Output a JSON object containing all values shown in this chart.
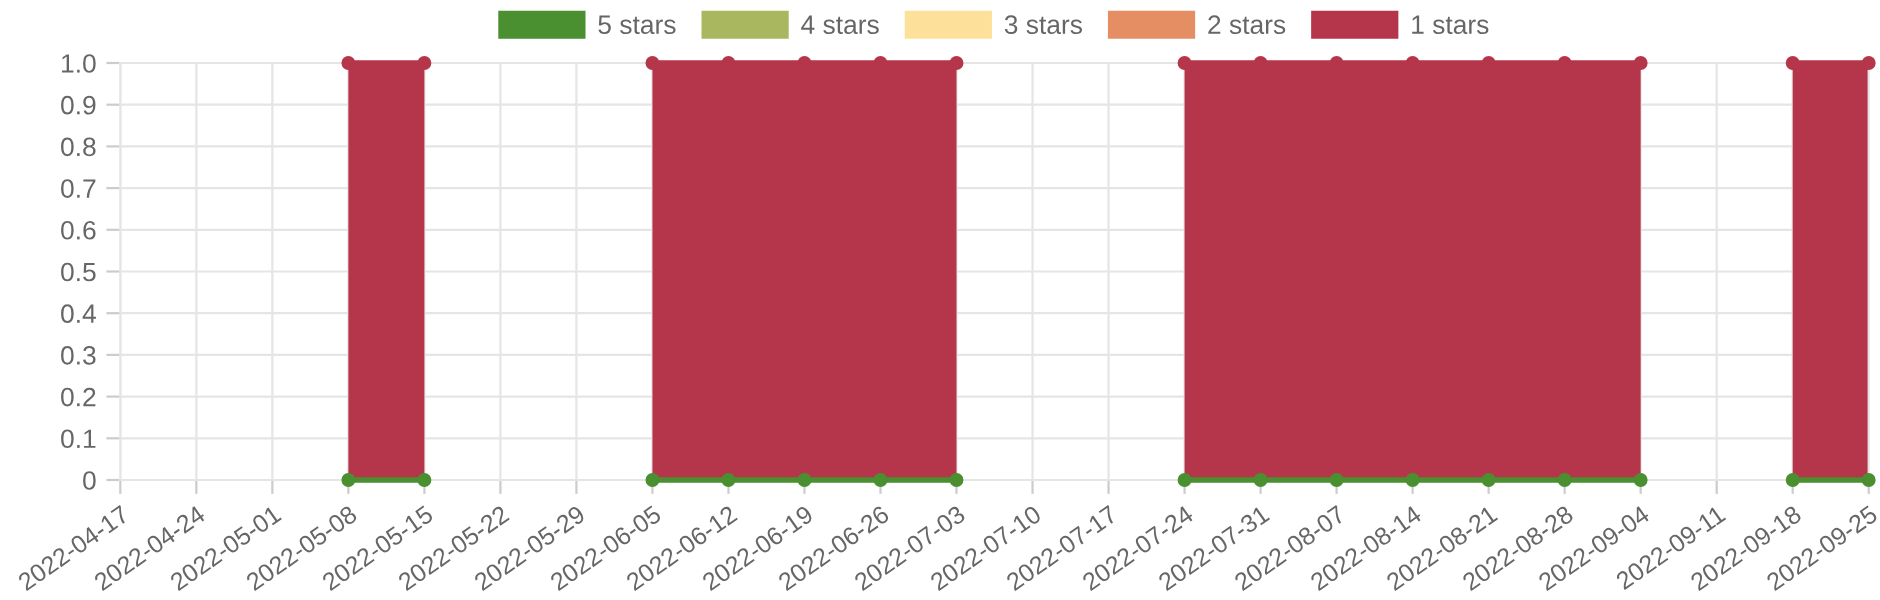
{
  "chart_data": {
    "type": "area",
    "categories": [
      "2022-04-17",
      "2022-04-24",
      "2022-05-01",
      "2022-05-08",
      "2022-05-15",
      "2022-05-22",
      "2022-05-29",
      "2022-06-05",
      "2022-06-12",
      "2022-06-19",
      "2022-06-26",
      "2022-07-03",
      "2022-07-10",
      "2022-07-17",
      "2022-07-24",
      "2022-07-31",
      "2022-08-07",
      "2022-08-14",
      "2022-08-21",
      "2022-08-28",
      "2022-09-04",
      "2022-09-11",
      "2022-09-18",
      "2022-09-25"
    ],
    "series": [
      {
        "name": "5 stars",
        "color": "#4a8f30",
        "type": "line",
        "values": [
          null,
          null,
          null,
          0,
          0,
          null,
          null,
          0,
          0,
          0,
          0,
          0,
          null,
          null,
          0,
          0,
          0,
          0,
          0,
          0,
          0,
          null,
          0,
          0
        ]
      },
      {
        "name": "4 stars",
        "color": "#a9b85f",
        "values": [
          null,
          null,
          null,
          null,
          null,
          null,
          null,
          null,
          null,
          null,
          null,
          null,
          null,
          null,
          null,
          null,
          null,
          null,
          null,
          null,
          null,
          null,
          null,
          null
        ]
      },
      {
        "name": "3 stars",
        "color": "#fde19a",
        "values": [
          null,
          null,
          null,
          null,
          null,
          null,
          null,
          null,
          null,
          null,
          null,
          null,
          null,
          null,
          null,
          null,
          null,
          null,
          null,
          null,
          null,
          null,
          null,
          null
        ]
      },
      {
        "name": "2 stars",
        "color": "#e58e63",
        "values": [
          null,
          null,
          null,
          null,
          null,
          null,
          null,
          null,
          null,
          null,
          null,
          null,
          null,
          null,
          null,
          null,
          null,
          null,
          null,
          null,
          null,
          null,
          null,
          null
        ]
      },
      {
        "name": "1 stars",
        "color": "#b5364a",
        "values": [
          null,
          null,
          null,
          1,
          1,
          null,
          null,
          1,
          1,
          1,
          1,
          1,
          null,
          null,
          1,
          1,
          1,
          1,
          1,
          1,
          1,
          null,
          1,
          1
        ]
      }
    ],
    "ylim": [
      0,
      1
    ],
    "yticks": [
      0,
      0.1,
      0.2,
      0.3,
      0.4,
      0.5,
      0.6,
      0.7,
      0.8,
      0.9,
      {
        "value": 1,
        "label": "1.0"
      }
    ],
    "grid": true,
    "legend": "top",
    "marker": "circle",
    "line_style": "solid"
  }
}
